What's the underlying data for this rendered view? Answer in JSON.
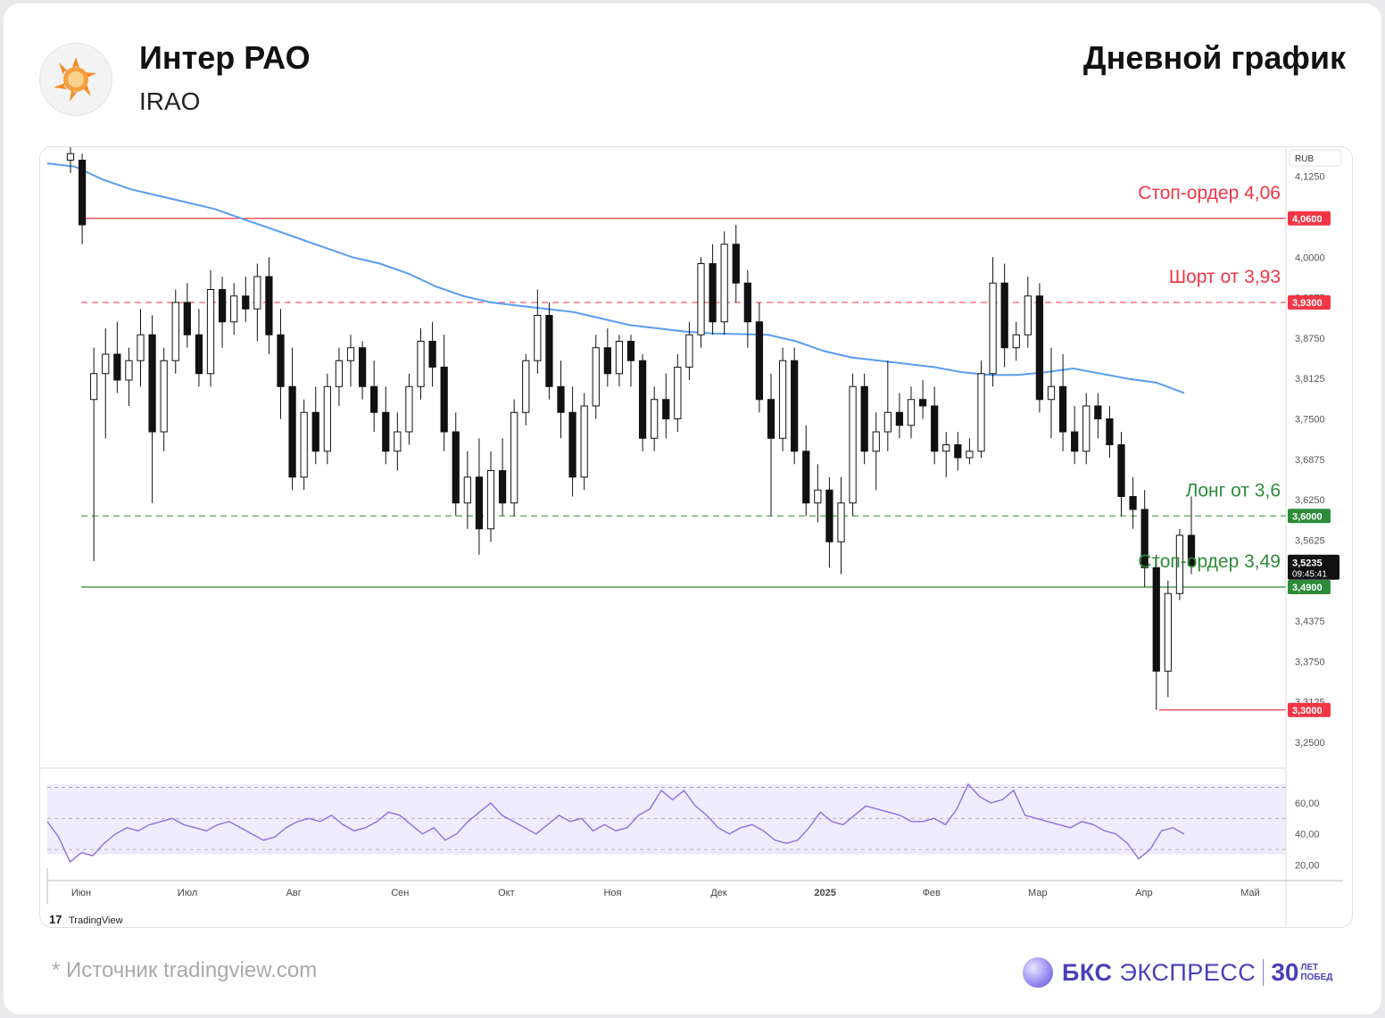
{
  "header": {
    "title": "Интер РАО",
    "ticker": "IRAO",
    "chart_kind": "Дневной график"
  },
  "footer": {
    "source": "*  Источник tradingview.com",
    "brand_bold": "БКС",
    "brand_rest": "ЭКСПРЕСС",
    "brand_num": "30",
    "brand_small1": "ЛЕТ",
    "brand_small2": "ПОБЕД"
  },
  "chart_data": {
    "type": "candlestick",
    "currency_label": "RUB",
    "watermark": "TradingView",
    "y_ticks": [
      "4,1250",
      "4,0000",
      "3,9375",
      "3,8750",
      "3,8125",
      "3,7500",
      "3,6875",
      "3,6250",
      "3,5625",
      "3,4375",
      "3,3750",
      "3,3125",
      "3,2500"
    ],
    "y_range": [
      3.21,
      4.17
    ],
    "x_labels": [
      "Июн",
      "Июл",
      "Авг",
      "Сен",
      "Окт",
      "Ноя",
      "Дек",
      "2025",
      "Фев",
      "Мар",
      "Апр",
      "Май"
    ],
    "levels": [
      {
        "value": 4.06,
        "tag": "4,0600",
        "label": "Стоп-ордер 4,06",
        "style": "solid",
        "color": "#f23645"
      },
      {
        "value": 3.93,
        "tag": "3,9300",
        "label": "Шорт от 3,93",
        "style": "dashed",
        "color": "#f23645"
      },
      {
        "value": 3.6,
        "tag": "3,6000",
        "label": "Лонг от 3,6",
        "style": "dashed",
        "color": "#2e8b3a"
      },
      {
        "value": 3.49,
        "tag": "3,4900",
        "label": "Стоп-ордер 3,49",
        "style": "solid",
        "color": "#2e8b3a"
      },
      {
        "value": 3.3,
        "tag": "3,3000",
        "label": "",
        "style": "solid",
        "color": "#f23645"
      }
    ],
    "last_price": {
      "value": 3.5235,
      "tag": "3,5235",
      "timer": "09:45:41"
    },
    "ma_color": "#5a9cf0",
    "ma": [
      4.145,
      4.14,
      4.12,
      4.105,
      4.095,
      4.085,
      4.075,
      4.06,
      4.045,
      4.03,
      4.015,
      4.0,
      3.99,
      3.975,
      3.955,
      3.94,
      3.93,
      3.925,
      3.92,
      3.915,
      3.905,
      3.895,
      3.89,
      3.885,
      3.882,
      3.881,
      3.88,
      3.87,
      3.855,
      3.845,
      3.84,
      3.835,
      3.83,
      3.822,
      3.818,
      3.818,
      3.822,
      3.828,
      3.82,
      3.812,
      3.806,
      3.79
    ],
    "candles": [
      {
        "d": "Май",
        "o": 4.15,
        "h": 4.17,
        "l": 4.13,
        "c": 4.16
      },
      {
        "d": "Май",
        "o": 4.15,
        "h": 4.16,
        "l": 4.02,
        "c": 4.05
      },
      {
        "d": "Июн",
        "o": 3.78,
        "h": 3.86,
        "l": 3.53,
        "c": 3.82
      },
      {
        "d": "Июн",
        "o": 3.82,
        "h": 3.89,
        "l": 3.72,
        "c": 3.85
      },
      {
        "d": "Июн",
        "o": 3.85,
        "h": 3.9,
        "l": 3.79,
        "c": 3.81
      },
      {
        "d": "Июн",
        "o": 3.81,
        "h": 3.86,
        "l": 3.77,
        "c": 3.84
      },
      {
        "d": "Июн",
        "o": 3.84,
        "h": 3.92,
        "l": 3.8,
        "c": 3.88
      },
      {
        "d": "Июн",
        "o": 3.88,
        "h": 3.91,
        "l": 3.62,
        "c": 3.73
      },
      {
        "d": "Июн",
        "o": 3.73,
        "h": 3.86,
        "l": 3.7,
        "c": 3.84
      },
      {
        "d": "Июн",
        "o": 3.84,
        "h": 3.95,
        "l": 3.82,
        "c": 3.93
      },
      {
        "d": "Июн",
        "o": 3.93,
        "h": 3.96,
        "l": 3.86,
        "c": 3.88
      },
      {
        "d": "Июн",
        "o": 3.88,
        "h": 3.92,
        "l": 3.8,
        "c": 3.82
      },
      {
        "d": "Июн",
        "o": 3.82,
        "h": 3.98,
        "l": 3.8,
        "c": 3.95
      },
      {
        "d": "Июн",
        "o": 3.95,
        "h": 3.97,
        "l": 3.86,
        "c": 3.9
      },
      {
        "d": "Июн",
        "o": 3.9,
        "h": 3.96,
        "l": 3.88,
        "c": 3.94
      },
      {
        "d": "Июн",
        "o": 3.94,
        "h": 3.97,
        "l": 3.9,
        "c": 3.92
      },
      {
        "d": "Июл",
        "o": 3.92,
        "h": 3.99,
        "l": 3.87,
        "c": 3.97
      },
      {
        "d": "Июл",
        "o": 3.97,
        "h": 4.0,
        "l": 3.85,
        "c": 3.88
      },
      {
        "d": "Июл",
        "o": 3.88,
        "h": 3.92,
        "l": 3.75,
        "c": 3.8
      },
      {
        "d": "Июл",
        "o": 3.8,
        "h": 3.86,
        "l": 3.64,
        "c": 3.66
      },
      {
        "d": "Июл",
        "o": 3.66,
        "h": 3.78,
        "l": 3.64,
        "c": 3.76
      },
      {
        "d": "Июл",
        "o": 3.76,
        "h": 3.8,
        "l": 3.68,
        "c": 3.7
      },
      {
        "d": "Июл",
        "o": 3.7,
        "h": 3.82,
        "l": 3.68,
        "c": 3.8
      },
      {
        "d": "Июл",
        "o": 3.8,
        "h": 3.86,
        "l": 3.77,
        "c": 3.84
      },
      {
        "d": "Июл",
        "o": 3.84,
        "h": 3.88,
        "l": 3.8,
        "c": 3.86
      },
      {
        "d": "Авг",
        "o": 3.86,
        "h": 3.87,
        "l": 3.78,
        "c": 3.8
      },
      {
        "d": "Авг",
        "o": 3.8,
        "h": 3.84,
        "l": 3.73,
        "c": 3.76
      },
      {
        "d": "Авг",
        "o": 3.76,
        "h": 3.8,
        "l": 3.68,
        "c": 3.7
      },
      {
        "d": "Авг",
        "o": 3.7,
        "h": 3.76,
        "l": 3.67,
        "c": 3.73
      },
      {
        "d": "Авг",
        "o": 3.73,
        "h": 3.82,
        "l": 3.71,
        "c": 3.8
      },
      {
        "d": "Авг",
        "o": 3.8,
        "h": 3.89,
        "l": 3.78,
        "c": 3.87
      },
      {
        "d": "Авг",
        "o": 3.87,
        "h": 3.9,
        "l": 3.8,
        "c": 3.83
      },
      {
        "d": "Авг",
        "o": 3.83,
        "h": 3.88,
        "l": 3.7,
        "c": 3.73
      },
      {
        "d": "Сен",
        "o": 3.73,
        "h": 3.76,
        "l": 3.6,
        "c": 3.62
      },
      {
        "d": "Сен",
        "o": 3.62,
        "h": 3.7,
        "l": 3.58,
        "c": 3.66
      },
      {
        "d": "Сен",
        "o": 3.66,
        "h": 3.72,
        "l": 3.54,
        "c": 3.58
      },
      {
        "d": "Сен",
        "o": 3.58,
        "h": 3.7,
        "l": 3.56,
        "c": 3.67
      },
      {
        "d": "Сен",
        "o": 3.67,
        "h": 3.72,
        "l": 3.6,
        "c": 3.62
      },
      {
        "d": "Сен",
        "o": 3.62,
        "h": 3.78,
        "l": 3.6,
        "c": 3.76
      },
      {
        "d": "Сен",
        "o": 3.76,
        "h": 3.85,
        "l": 3.74,
        "c": 3.84
      },
      {
        "d": "Окт",
        "o": 3.84,
        "h": 3.95,
        "l": 3.82,
        "c": 3.91
      },
      {
        "d": "Окт",
        "o": 3.91,
        "h": 3.93,
        "l": 3.78,
        "c": 3.8
      },
      {
        "d": "Окт",
        "o": 3.8,
        "h": 3.84,
        "l": 3.72,
        "c": 3.76
      },
      {
        "d": "Окт",
        "o": 3.76,
        "h": 3.8,
        "l": 3.63,
        "c": 3.66
      },
      {
        "d": "Окт",
        "o": 3.66,
        "h": 3.79,
        "l": 3.64,
        "c": 3.77
      },
      {
        "d": "Окт",
        "o": 3.77,
        "h": 3.88,
        "l": 3.75,
        "c": 3.86
      },
      {
        "d": "Окт",
        "o": 3.86,
        "h": 3.89,
        "l": 3.8,
        "c": 3.82
      },
      {
        "d": "Окт",
        "o": 3.82,
        "h": 3.88,
        "l": 3.8,
        "c": 3.87
      },
      {
        "d": "Окт",
        "o": 3.87,
        "h": 3.88,
        "l": 3.8,
        "c": 3.84
      },
      {
        "d": "Окт",
        "o": 3.84,
        "h": 3.85,
        "l": 3.7,
        "c": 3.72
      },
      {
        "d": "Окт",
        "o": 3.72,
        "h": 3.8,
        "l": 3.7,
        "c": 3.78
      },
      {
        "d": "Окт",
        "o": 3.78,
        "h": 3.82,
        "l": 3.72,
        "c": 3.75
      },
      {
        "d": "Ноя",
        "o": 3.75,
        "h": 3.85,
        "l": 3.73,
        "c": 3.83
      },
      {
        "d": "Ноя",
        "o": 3.83,
        "h": 3.9,
        "l": 3.81,
        "c": 3.88
      },
      {
        "d": "Ноя",
        "o": 3.88,
        "h": 4.0,
        "l": 3.86,
        "c": 3.99
      },
      {
        "d": "Ноя",
        "o": 3.99,
        "h": 4.02,
        "l": 3.88,
        "c": 3.9
      },
      {
        "d": "Ноя",
        "o": 3.9,
        "h": 4.04,
        "l": 3.88,
        "c": 4.02
      },
      {
        "d": "Ноя",
        "o": 4.02,
        "h": 4.05,
        "l": 3.93,
        "c": 3.96
      },
      {
        "d": "Ноя",
        "o": 3.96,
        "h": 3.98,
        "l": 3.86,
        "c": 3.9
      },
      {
        "d": "Ноя",
        "o": 3.9,
        "h": 3.93,
        "l": 3.76,
        "c": 3.78
      },
      {
        "d": "Дек",
        "o": 3.78,
        "h": 3.82,
        "l": 3.6,
        "c": 3.72
      },
      {
        "d": "Дек",
        "o": 3.72,
        "h": 3.86,
        "l": 3.7,
        "c": 3.84
      },
      {
        "d": "Дек",
        "o": 3.84,
        "h": 3.86,
        "l": 3.68,
        "c": 3.7
      },
      {
        "d": "Дек",
        "o": 3.7,
        "h": 3.74,
        "l": 3.6,
        "c": 3.62
      },
      {
        "d": "Дек",
        "o": 3.62,
        "h": 3.68,
        "l": 3.59,
        "c": 3.64
      },
      {
        "d": "Дек",
        "o": 3.64,
        "h": 3.66,
        "l": 3.52,
        "c": 3.56
      },
      {
        "d": "Дек",
        "o": 3.56,
        "h": 3.66,
        "l": 3.51,
        "c": 3.62
      },
      {
        "d": "Дек",
        "o": 3.62,
        "h": 3.82,
        "l": 3.6,
        "c": 3.8
      },
      {
        "d": "2025",
        "o": 3.8,
        "h": 3.82,
        "l": 3.68,
        "c": 3.7
      },
      {
        "d": "2025",
        "o": 3.7,
        "h": 3.76,
        "l": 3.64,
        "c": 3.73
      },
      {
        "d": "2025",
        "o": 3.73,
        "h": 3.84,
        "l": 3.7,
        "c": 3.76
      },
      {
        "d": "2025",
        "o": 3.76,
        "h": 3.79,
        "l": 3.72,
        "c": 3.74
      },
      {
        "d": "2025",
        "o": 3.74,
        "h": 3.8,
        "l": 3.72,
        "c": 3.78
      },
      {
        "d": "2025",
        "o": 3.78,
        "h": 3.81,
        "l": 3.75,
        "c": 3.77
      },
      {
        "d": "2025",
        "o": 3.77,
        "h": 3.8,
        "l": 3.68,
        "c": 3.7
      },
      {
        "d": "Фев",
        "o": 3.7,
        "h": 3.73,
        "l": 3.66,
        "c": 3.71
      },
      {
        "d": "Фев",
        "o": 3.71,
        "h": 3.73,
        "l": 3.67,
        "c": 3.69
      },
      {
        "d": "Фев",
        "o": 3.69,
        "h": 3.72,
        "l": 3.68,
        "c": 3.7
      },
      {
        "d": "Фев",
        "o": 3.7,
        "h": 3.84,
        "l": 3.69,
        "c": 3.82
      },
      {
        "d": "Фев",
        "o": 3.82,
        "h": 4.0,
        "l": 3.8,
        "c": 3.96
      },
      {
        "d": "Фев",
        "o": 3.96,
        "h": 3.99,
        "l": 3.83,
        "c": 3.86
      },
      {
        "d": "Фев",
        "o": 3.86,
        "h": 3.9,
        "l": 3.84,
        "c": 3.88
      },
      {
        "d": "Фев",
        "o": 3.88,
        "h": 3.97,
        "l": 3.86,
        "c": 3.94
      },
      {
        "d": "Мар",
        "o": 3.94,
        "h": 3.96,
        "l": 3.76,
        "c": 3.78
      },
      {
        "d": "Мар",
        "o": 3.78,
        "h": 3.86,
        "l": 3.72,
        "c": 3.8
      },
      {
        "d": "Мар",
        "o": 3.8,
        "h": 3.85,
        "l": 3.7,
        "c": 3.73
      },
      {
        "d": "Мар",
        "o": 3.73,
        "h": 3.77,
        "l": 3.68,
        "c": 3.7
      },
      {
        "d": "Мар",
        "o": 3.7,
        "h": 3.79,
        "l": 3.68,
        "c": 3.77
      },
      {
        "d": "Мар",
        "o": 3.77,
        "h": 3.79,
        "l": 3.72,
        "c": 3.75
      },
      {
        "d": "Мар",
        "o": 3.75,
        "h": 3.77,
        "l": 3.69,
        "c": 3.71
      },
      {
        "d": "Апр",
        "o": 3.71,
        "h": 3.73,
        "l": 3.6,
        "c": 3.63
      },
      {
        "d": "Апр",
        "o": 3.63,
        "h": 3.66,
        "l": 3.58,
        "c": 3.61
      },
      {
        "d": "Апр",
        "o": 3.61,
        "h": 3.64,
        "l": 3.49,
        "c": 3.52
      },
      {
        "d": "Апр",
        "o": 3.52,
        "h": 3.54,
        "l": 3.3,
        "c": 3.36
      },
      {
        "d": "Апр",
        "o": 3.36,
        "h": 3.5,
        "l": 3.32,
        "c": 3.48
      },
      {
        "d": "Апр",
        "o": 3.48,
        "h": 3.58,
        "l": 3.47,
        "c": 3.57
      },
      {
        "d": "Апр",
        "o": 3.57,
        "h": 3.63,
        "l": 3.51,
        "c": 3.5235
      }
    ],
    "rsi": {
      "ticks": [
        "60,00",
        "40,00",
        "20,00"
      ],
      "upper": 70,
      "middle": 50,
      "lower": 30,
      "range": [
        10,
        80
      ],
      "line_color": "#8f6fe0",
      "values": [
        48,
        38,
        22,
        28,
        26,
        34,
        40,
        44,
        42,
        46,
        48,
        50,
        46,
        44,
        42,
        46,
        48,
        44,
        40,
        36,
        38,
        44,
        48,
        50,
        48,
        52,
        46,
        42,
        44,
        48,
        54,
        52,
        46,
        40,
        44,
        36,
        40,
        48,
        54,
        60,
        52,
        48,
        44,
        40,
        46,
        52,
        48,
        50,
        42,
        46,
        42,
        44,
        52,
        56,
        68,
        62,
        68,
        58,
        52,
        44,
        40,
        44,
        46,
        42,
        36,
        34,
        36,
        44,
        54,
        48,
        46,
        52,
        58,
        56,
        54,
        52,
        48,
        48,
        50,
        46,
        56,
        72,
        64,
        60,
        62,
        68,
        52,
        50,
        48,
        46,
        44,
        48,
        46,
        42,
        40,
        34,
        24,
        30,
        42,
        44,
        40
      ]
    }
  }
}
